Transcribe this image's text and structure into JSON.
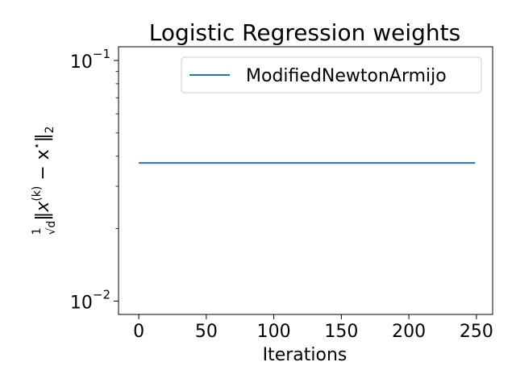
{
  "chart_data": {
    "type": "line",
    "title": "Logistic Regression weights",
    "xlabel": "Iterations",
    "ylabel_parts": {
      "frac_num": "1",
      "frac_den": "√d",
      "norm_left": "‖",
      "x": "x",
      "superscript": "(k)",
      "minus": " − x",
      "star": "⋆",
      "norm_right": "‖",
      "subscript": "2"
    },
    "xlim": [
      -15,
      262
    ],
    "ylim": [
      0.0088,
      0.114
    ],
    "yscale": "log",
    "x_ticks": [
      0,
      50,
      100,
      150,
      200,
      250
    ],
    "x_tick_labels": [
      "0",
      "50",
      "100",
      "150",
      "200",
      "250"
    ],
    "y_major_ticks": [
      {
        "value": 0.1,
        "base": "10",
        "exp": "−1"
      },
      {
        "value": 0.01,
        "base": "10",
        "exp": "−2"
      }
    ],
    "y_minor_ticks": [
      0.02,
      0.03,
      0.04,
      0.05,
      0.06,
      0.07,
      0.08,
      0.09
    ],
    "legend_position": "top-right",
    "series": [
      {
        "name": "ModifiedNewtonArmijo",
        "color": "#1f77b4",
        "x": [
          0,
          249
        ],
        "y": [
          0.0375,
          0.0375
        ]
      }
    ]
  }
}
